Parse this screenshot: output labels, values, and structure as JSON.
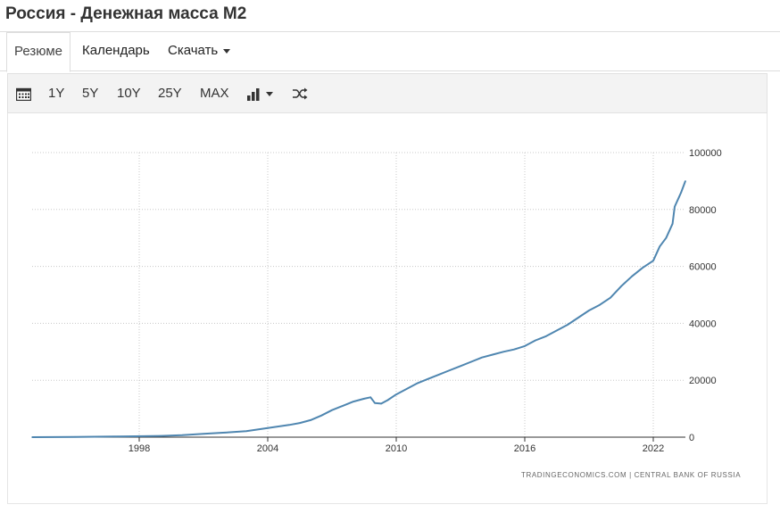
{
  "header": {
    "title": "Россия - Денежная масса M2"
  },
  "tabs": [
    {
      "label": "Резюме",
      "active": true
    },
    {
      "label": "Календарь",
      "active": false
    },
    {
      "label": "Скачать",
      "active": false
    }
  ],
  "toolbar": {
    "calendar_icon": "calendar-icon",
    "ranges": [
      "1Y",
      "5Y",
      "10Y",
      "25Y",
      "MAX"
    ],
    "chart_type_icon": "bar-chart-icon",
    "shuffle_icon": "shuffle-icon"
  },
  "colors": {
    "line": "#4f86b0",
    "grid": "#c8c8c8",
    "axis": "#333333"
  },
  "chart_data": {
    "type": "line",
    "title": "Россия - Денежная масса M2",
    "xlabel": "",
    "ylabel": "",
    "xlim": [
      1993,
      2023.5
    ],
    "ylim": [
      0,
      100000
    ],
    "x_ticks": [
      1998,
      2004,
      2010,
      2016,
      2022
    ],
    "y_ticks": [
      0,
      20000,
      40000,
      60000,
      80000,
      100000
    ],
    "grid": true,
    "series": [
      {
        "name": "Денежная масса M2",
        "x": [
          1993,
          1995,
          1997,
          1999,
          2000,
          2001,
          2002,
          2003,
          2004,
          2005,
          2005.5,
          2006,
          2006.5,
          2007,
          2007.5,
          2008,
          2008.5,
          2008.8,
          2009,
          2009.3,
          2009.6,
          2010,
          2010.5,
          2011,
          2011.5,
          2012,
          2012.5,
          2013,
          2013.5,
          2014,
          2014.5,
          2015,
          2015.5,
          2016,
          2016.5,
          2017,
          2017.5,
          2018,
          2018.5,
          2019,
          2019.5,
          2020,
          2020.5,
          2021,
          2021.5,
          2022,
          2022.3,
          2022.6,
          2022.9,
          2023,
          2023.3,
          2023.5
        ],
        "values": [
          0,
          100,
          250,
          450,
          700,
          1150,
          1600,
          2100,
          3200,
          4300,
          5000,
          6000,
          7600,
          9500,
          11000,
          12500,
          13500,
          14000,
          12000,
          11800,
          13000,
          15000,
          17000,
          19000,
          20500,
          22000,
          23500,
          25000,
          26500,
          28000,
          29000,
          30000,
          30800,
          32000,
          34000,
          35500,
          37500,
          39500,
          42000,
          44500,
          46500,
          49000,
          53000,
          56500,
          59500,
          62000,
          67000,
          70000,
          75000,
          81000,
          86000,
          90000
        ]
      }
    ],
    "source_left": "TRADINGECONOMICS.COM",
    "source_right": "CENTRAL BANK OF RUSSIA"
  }
}
